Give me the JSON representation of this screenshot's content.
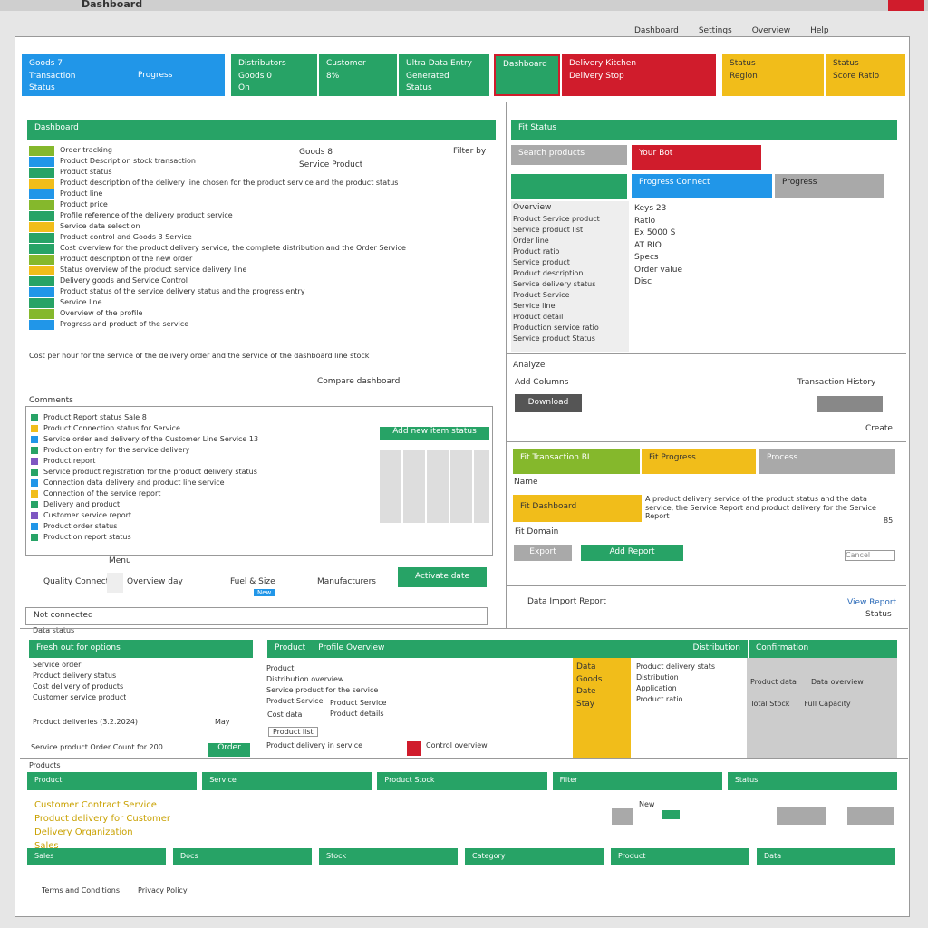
{
  "header": {
    "title": "Dashboard",
    "links": [
      "Dashboard",
      "Settings",
      "Overview",
      "Help"
    ]
  },
  "tiles": {
    "t1": [
      "Goods 7",
      "Transaction",
      "Status"
    ],
    "t2": "Progress",
    "t3": [
      "Distributors",
      "Goods 0",
      "On"
    ],
    "t4": [
      "Customer",
      "8%"
    ],
    "t5": [
      "Ultra Data Entry",
      "Generated",
      "Status"
    ],
    "t6": "Dashboard",
    "t7": [
      "Delivery Kitchen",
      "Delivery Stop"
    ],
    "t8": [
      "Status",
      "Region"
    ],
    "t9": [
      "Status",
      "Score Ratio"
    ]
  },
  "main": {
    "title": "Dashboard",
    "lines": [
      "Order tracking",
      "Product Description stock transaction",
      "Product status",
      "Product description of the delivery line chosen for the product service and the product status",
      "Product line",
      "Product price",
      "Profile reference of the delivery product service",
      "Service data selection",
      "Product control and Goods 3 Service",
      "Cost overview for the product delivery service, the complete distribution and the Order Service",
      "Product description of the new order",
      "Status overview of the product service delivery line",
      "Delivery goods and Service Control",
      "Product status of the service delivery status and the progress entry",
      "Service line",
      "Overview of the profile",
      "Progress and product of the service"
    ],
    "side": [
      "Goods 8",
      "Service Product"
    ],
    "filter": "Filter by",
    "note": "Cost per hour for the service of the delivery order and the service of the dashboard line stock",
    "compare": "Compare dashboard"
  },
  "comments": {
    "title": "Comments",
    "items": [
      "Product Report status Sale 8",
      "Product Connection status for Service",
      "Service order and delivery of the Customer Line Service 13",
      "Production entry for the service delivery",
      "Product report",
      "Service product registration for the product delivery status",
      "Connection data delivery and product line service",
      "Connection of the service report",
      "Delivery and product",
      "Customer service report",
      "Product order status",
      "Production report status"
    ],
    "add": "Add new item status",
    "menu": "Menu",
    "quality": "Quality Connection",
    "overview": "Overview day",
    "fuel": "Fuel & Size",
    "tag": "New",
    "manufacturers": "Manufacturers",
    "activate": "Activate date",
    "status": "Not connected",
    "footnote": "Data status"
  },
  "fit": {
    "title": "Fit Status",
    "search": "Search products",
    "red": "Your Bot",
    "blue": "Progress Connect",
    "gray": "Progress",
    "heading": "Overview",
    "labels": [
      "Product Service product",
      "Service product list",
      "Order line",
      "Product ratio",
      "Service product",
      "Product description",
      "Service delivery status",
      "Product Service",
      "Service line",
      "Product detail",
      "Production service ratio",
      "Service product Status"
    ],
    "values": [
      "Keys 23",
      "Ratio",
      "Ex 5000 S",
      "AT RIO",
      "Specs",
      "Order value",
      "Disc"
    ],
    "analyze": "Analyze",
    "add_columns": "Add Columns",
    "history": "Transaction History",
    "download": "Download",
    "create": "Create"
  },
  "report": {
    "tiles": [
      "Fit Transaction BI",
      "Fit Progress",
      "Process"
    ],
    "name": "Name",
    "dashboard": "Fit Dashboard",
    "text": "A product delivery service of the product status and the data service, the Service Report and product delivery for the Service Report",
    "num": "85",
    "domain": "Fit Domain",
    "export": "Export",
    "add": "Add Report",
    "cancel": "Cancel",
    "import": "Data Import Report",
    "view": "View Report",
    "status": "Status"
  },
  "bottom": {
    "left_title": "Fresh out for options",
    "left_lines": [
      "Service order",
      "Product delivery status",
      "Cost delivery of products",
      "Customer service product"
    ],
    "date": "Product deliveries (3.2.2024)",
    "may": "May",
    "service": "Service product Order Count for 200",
    "button": "Order",
    "mid_title": "Product",
    "mid_sub": "Profile Overview",
    "mid_lines": [
      "Product",
      "Distribution overview",
      "Service product for the service",
      "Product Service"
    ],
    "mid_small": [
      "Product Service",
      "Product details"
    ],
    "cost": "Cost data",
    "product": "Product list",
    "last": "Product delivery in service",
    "last2": "Control overview",
    "distribution": "Distribution",
    "confirmation": "Confirmation",
    "yellow": [
      "Data",
      "Goods",
      "Date",
      "Stay"
    ],
    "rows": [
      "Product delivery stats",
      "Distribution",
      "Application",
      "Product ratio"
    ],
    "grid": [
      [
        "Product data",
        "Data overview"
      ],
      [
        "Total Stock",
        "Full Capacity"
      ]
    ]
  },
  "strip": {
    "label": "Products",
    "cells": [
      "Product",
      "Service",
      "Product Stock",
      "Filter",
      "Status"
    ],
    "yellow": [
      "Customer Contract Service",
      "Product delivery for Customer",
      "Delivery Organization",
      "Sales"
    ],
    "tag": "New",
    "cells2": [
      "Sales",
      "Docs",
      "Stock",
      "Category",
      "Product",
      "Data"
    ]
  },
  "footer": [
    "Terms and Conditions",
    "Privacy Policy"
  ]
}
